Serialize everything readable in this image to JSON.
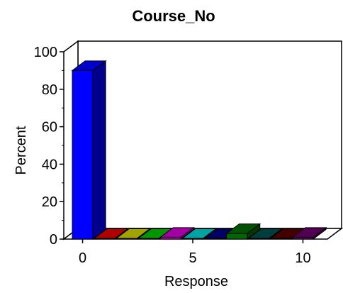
{
  "chart_data": {
    "type": "bar",
    "title": "Course_No",
    "xlabel": "Response",
    "ylabel": "Percent",
    "ylim": [
      0,
      100
    ],
    "yticks": [
      0,
      20,
      40,
      60,
      80,
      100
    ],
    "xticks": [
      0,
      5,
      10
    ],
    "grid": false,
    "categories": [
      0,
      1,
      2,
      3,
      4,
      5,
      6,
      7,
      8,
      9,
      10
    ],
    "values": [
      90,
      0,
      0,
      0,
      1,
      0,
      0,
      3,
      0,
      0,
      1
    ],
    "colors": [
      "#0000ff",
      "#dd0000",
      "#cccc00",
      "#00bb00",
      "#cc00cc",
      "#00cccc",
      "#000080",
      "#006600",
      "#004d4d",
      "#550000",
      "#660066"
    ]
  }
}
